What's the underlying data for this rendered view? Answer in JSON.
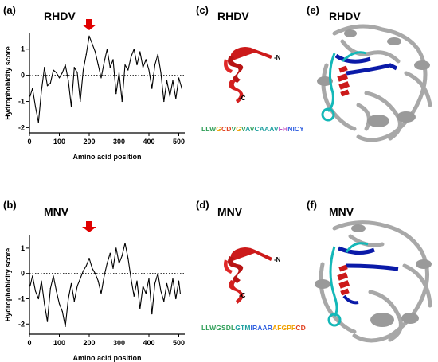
{
  "panels": {
    "a": {
      "label": "(a)",
      "title": "RHDV"
    },
    "b": {
      "label": "(b)",
      "title": "MNV"
    },
    "c": {
      "label": "(c)",
      "title": "RHDV",
      "n_term": "-N",
      "c_term": "-C"
    },
    "d": {
      "label": "(d)",
      "title": "MNV",
      "n_term": "-N",
      "c_term": "-C"
    },
    "e": {
      "label": "(e)",
      "title": "RHDV"
    },
    "f": {
      "label": "(f)",
      "title": "MNV"
    }
  },
  "sequences": {
    "rhdv": [
      {
        "t": "L",
        "c": "#2e9e57"
      },
      {
        "t": "L",
        "c": "#2e9e57"
      },
      {
        "t": "W",
        "c": "#2e9e57"
      },
      {
        "t": "G",
        "c": "#f0a000"
      },
      {
        "t": "C",
        "c": "#e0401f"
      },
      {
        "t": "D",
        "c": "#e0401f"
      },
      {
        "t": "V",
        "c": "#2e9e57"
      },
      {
        "t": "G",
        "c": "#f0a000"
      },
      {
        "t": "V",
        "c": "#2e9e57"
      },
      {
        "t": "A",
        "c": "#1fa0a0"
      },
      {
        "t": "V",
        "c": "#2e9e57"
      },
      {
        "t": "C",
        "c": "#1fa0a0"
      },
      {
        "t": "A",
        "c": "#1fa0a0"
      },
      {
        "t": "A",
        "c": "#1fa0a0"
      },
      {
        "t": "A",
        "c": "#1fa0a0"
      },
      {
        "t": "V",
        "c": "#1fa0a0"
      },
      {
        "t": "F",
        "c": "#c050c0"
      },
      {
        "t": "H",
        "c": "#c050c0"
      },
      {
        "t": "N",
        "c": "#3060e0"
      },
      {
        "t": "I",
        "c": "#3060e0"
      },
      {
        "t": "C",
        "c": "#3060e0"
      },
      {
        "t": "Y",
        "c": "#3060e0"
      }
    ],
    "mnv": [
      {
        "t": "L",
        "c": "#2e9e57"
      },
      {
        "t": "L",
        "c": "#2e9e57"
      },
      {
        "t": "W",
        "c": "#2e9e57"
      },
      {
        "t": "G",
        "c": "#2e9e57"
      },
      {
        "t": "S",
        "c": "#2e9e57"
      },
      {
        "t": "D",
        "c": "#2e9e57"
      },
      {
        "t": "L",
        "c": "#2e9e57"
      },
      {
        "t": "G",
        "c": "#1fa0a0"
      },
      {
        "t": "T",
        "c": "#1fa0a0"
      },
      {
        "t": "M",
        "c": "#1fa0a0"
      },
      {
        "t": "I",
        "c": "#3060e0"
      },
      {
        "t": "R",
        "c": "#3060e0"
      },
      {
        "t": "A",
        "c": "#3060e0"
      },
      {
        "t": "A",
        "c": "#3060e0"
      },
      {
        "t": "R",
        "c": "#3060e0"
      },
      {
        "t": "A",
        "c": "#f0a000"
      },
      {
        "t": "F",
        "c": "#f0a000"
      },
      {
        "t": "G",
        "c": "#f0a000"
      },
      {
        "t": "P",
        "c": "#f0a000"
      },
      {
        "t": "F",
        "c": "#f0a000"
      },
      {
        "t": "C",
        "c": "#e0401f"
      },
      {
        "t": "D",
        "c": "#e0401f"
      }
    ]
  },
  "colors": {
    "arrow": "#e00000",
    "helix": "#cc1a1a",
    "strand_blue": "#0a1aa8",
    "loop_cyan": "#14b8b8",
    "protein_gray": "#a8a8a8"
  },
  "chart_data": [
    {
      "type": "line",
      "title": "RHDV",
      "xlabel": "Amino acid position",
      "ylabel": "Hydrophobicity score",
      "xlim": [
        0,
        520
      ],
      "ylim": [
        -2.2,
        1.6
      ],
      "xticks": [
        0,
        100,
        200,
        300,
        400,
        500
      ],
      "yticks": [
        -2,
        -1,
        0,
        1
      ],
      "reference_line_y": 0,
      "arrow_at_x": 200,
      "x": [
        2,
        10,
        20,
        30,
        40,
        50,
        60,
        70,
        80,
        90,
        100,
        110,
        120,
        130,
        140,
        150,
        160,
        170,
        180,
        190,
        200,
        210,
        220,
        230,
        240,
        250,
        260,
        270,
        280,
        290,
        300,
        310,
        320,
        330,
        340,
        350,
        360,
        370,
        380,
        390,
        400,
        410,
        420,
        430,
        440,
        450,
        460,
        470,
        480,
        490,
        500,
        510
      ],
      "y": [
        -0.8,
        -0.5,
        -1.2,
        -1.8,
        -0.6,
        0.3,
        -0.4,
        -0.3,
        0.2,
        0.1,
        -0.1,
        0.1,
        0.4,
        -0.2,
        -1.2,
        0.3,
        0.1,
        -1.0,
        0.2,
        0.8,
        1.5,
        1.2,
        0.9,
        0.4,
        -0.1,
        0.5,
        1.0,
        0.3,
        0.6,
        -0.7,
        0.1,
        -1.0,
        0.4,
        0.2,
        0.7,
        1.0,
        0.4,
        0.9,
        0.3,
        0.6,
        0.2,
        -0.5,
        0.4,
        0.8,
        0.1,
        -1.0,
        -0.2,
        -0.8,
        -0.2,
        -0.9,
        -0.1,
        -0.5
      ]
    },
    {
      "type": "line",
      "title": "MNV",
      "xlabel": "Amino acid position",
      "ylabel": "Hydrophobicity score",
      "xlim": [
        0,
        520
      ],
      "ylim": [
        -2.4,
        1.5
      ],
      "xticks": [
        0,
        100,
        200,
        300,
        400,
        500
      ],
      "yticks": [
        -2,
        -1,
        0,
        1
      ],
      "reference_line_y": 0,
      "arrow_at_x": 200,
      "x": [
        2,
        10,
        20,
        30,
        40,
        50,
        60,
        70,
        80,
        90,
        100,
        110,
        120,
        130,
        140,
        150,
        160,
        170,
        180,
        190,
        200,
        210,
        220,
        230,
        240,
        250,
        260,
        270,
        280,
        290,
        300,
        310,
        320,
        330,
        340,
        350,
        360,
        370,
        380,
        390,
        400,
        410,
        420,
        430,
        440,
        450,
        460,
        470,
        480,
        490,
        500,
        505
      ],
      "y": [
        -0.5,
        -0.1,
        -0.7,
        -1.0,
        -0.3,
        -1.2,
        -1.9,
        -0.6,
        -0.1,
        -0.7,
        -1.2,
        -1.5,
        -2.1,
        -1.0,
        -0.4,
        -1.1,
        -0.5,
        -0.2,
        0.1,
        0.3,
        0.6,
        0.2,
        0.0,
        -0.3,
        -0.8,
        -0.1,
        0.4,
        0.8,
        0.2,
        1.0,
        0.4,
        0.7,
        1.2,
        0.6,
        -0.2,
        -0.9,
        -0.3,
        -1.4,
        -0.5,
        -0.8,
        -0.2,
        -1.6,
        -0.4,
        0.0,
        -0.7,
        -1.1,
        -0.4,
        -0.9,
        -0.2,
        -1.0,
        -0.3,
        -0.8
      ]
    }
  ]
}
